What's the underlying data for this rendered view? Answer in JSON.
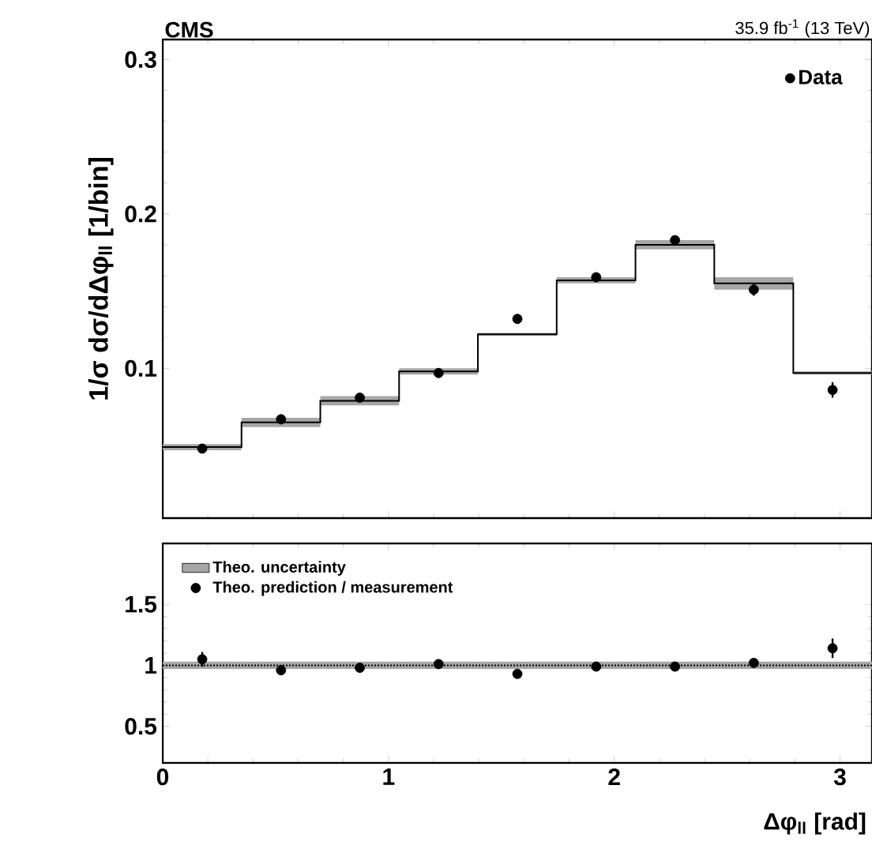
{
  "chart_data": [
    {
      "type": "step",
      "title": "CMS",
      "subtitle": "35.9 fb$^{-1}$ (13 TeV)",
      "ylabel": "1/σ dσ/dΔφ$_{ll}$ [1/bin]",
      "xlim": [
        0,
        3.1416
      ],
      "ylim": [
        0.003,
        0.313
      ],
      "xticks": [
        0,
        1,
        2,
        3
      ],
      "yticks": [
        0.1,
        0.2,
        0.3
      ],
      "tick_labels": "y",
      "legend": "top right",
      "series": [
        {
          "color": "#000000",
          "x": [
            0,
            0.349,
            0.698,
            1.047,
            1.396,
            1.745,
            2.094,
            2.443,
            2.793,
            3.1416
          ],
          "values": [
            0.049,
            0.065,
            0.079,
            0.098,
            0.122,
            0.157,
            0.18,
            0.155,
            0.097,
            0.097
          ],
          "lower": [
            0.047,
            0.062,
            0.076,
            0.096,
            0.121,
            0.155,
            0.177,
            0.151,
            0.096,
            0.096
          ],
          "upper": [
            0.051,
            0.068,
            0.082,
            0.1,
            0.123,
            0.159,
            0.183,
            0.159,
            0.098,
            0.098
          ]
        },
        {
          "type": "scatter",
          "name": "Data",
          "color": "#000000",
          "marker": "circle",
          "x": [
            0.175,
            0.524,
            0.873,
            1.222,
            1.571,
            1.92,
            2.269,
            2.618,
            2.967
          ],
          "values": [
            0.048,
            0.067,
            0.081,
            0.097,
            0.132,
            0.159,
            0.183,
            0.151,
            0.086
          ],
          "errors": [
            0.002,
            0.003,
            0.003,
            0.003,
            0.003,
            0.003,
            0.003,
            0.004,
            0.005
          ]
        }
      ]
    },
    {
      "type": "step",
      "xlabel": "Δφ$_{ll}$ [rad]",
      "xlim": [
        0,
        3.1416
      ],
      "ylim": [
        0.2,
        2.0
      ],
      "xticks": [
        0,
        1,
        2,
        3
      ],
      "yticks": [
        0.5,
        1,
        1.5
      ],
      "legend": "top left",
      "series": [
        {
          "name": "Theo. uncertainty",
          "color": "#000000",
          "line_style": "dotted",
          "x": [
            0,
            0.349,
            0.698,
            1.047,
            1.396,
            1.745,
            2.094,
            2.443,
            2.793,
            3.1416
          ],
          "values": [
            1,
            1,
            1,
            1,
            1,
            1,
            1,
            1,
            1,
            1
          ],
          "lower": [
            0.97,
            0.97,
            0.97,
            0.97,
            0.97,
            0.97,
            0.97,
            0.97,
            0.97,
            0.97
          ],
          "upper": [
            1.03,
            1.03,
            1.03,
            1.03,
            1.03,
            1.03,
            1.03,
            1.03,
            1.03,
            1.03
          ]
        },
        {
          "type": "scatter",
          "name": "Theo. prediction / measurement",
          "color": "#000000",
          "marker": "circle",
          "x": [
            0.175,
            0.524,
            0.873,
            1.222,
            1.571,
            1.92,
            2.269,
            2.618,
            2.967
          ],
          "values": [
            1.05,
            0.96,
            0.98,
            1.01,
            0.93,
            0.99,
            0.99,
            1.02,
            1.14
          ],
          "errors": [
            0.06,
            0.03,
            0.02,
            0.02,
            0.02,
            0.02,
            0.02,
            0.03,
            0.08
          ]
        }
      ]
    }
  ]
}
